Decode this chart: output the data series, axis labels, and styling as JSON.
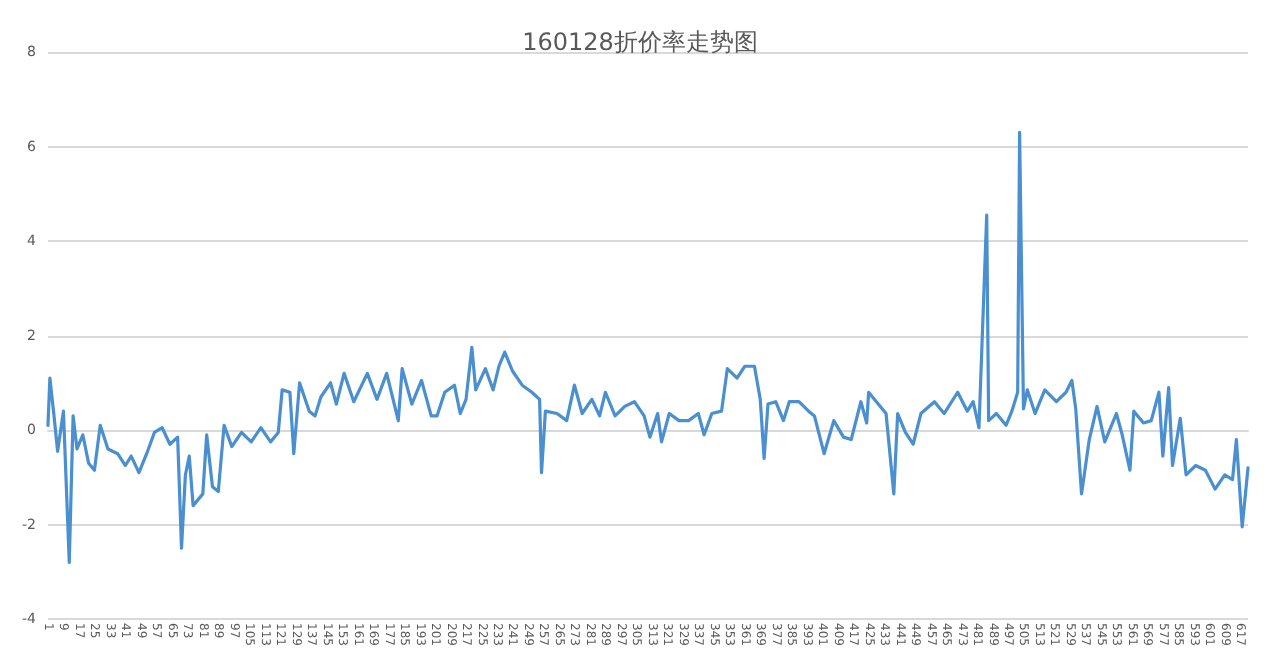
{
  "chart_data": {
    "type": "line",
    "title": "160128折价率走势图",
    "x": [
      1,
      2,
      4,
      6,
      9,
      12,
      14,
      16,
      19,
      22,
      25,
      28,
      32,
      37,
      41,
      44,
      48,
      52,
      56,
      60,
      64,
      68,
      70,
      72,
      74,
      76,
      81,
      83,
      86,
      89,
      92,
      96,
      101,
      106,
      111,
      116,
      120,
      122,
      126,
      128,
      131,
      136,
      139,
      142,
      147,
      150,
      154,
      159,
      166,
      171,
      176,
      182,
      184,
      189,
      194,
      199,
      202,
      206,
      211,
      214,
      217,
      220,
      222,
      227,
      231,
      234,
      237,
      241,
      246,
      251,
      255,
      256,
      258,
      264,
      269,
      273,
      277,
      282,
      286,
      289,
      294,
      299,
      304,
      309,
      312,
      316,
      318,
      322,
      327,
      332,
      337,
      340,
      344,
      349,
      352,
      357,
      361,
      366,
      369,
      371,
      373,
      377,
      381,
      384,
      389,
      394,
      397,
      402,
      407,
      412,
      416,
      421,
      424,
      425,
      429,
      434,
      438,
      440,
      444,
      448,
      452,
      459,
      464,
      471,
      476,
      479,
      482,
      486,
      487,
      491,
      496,
      499,
      502,
      503,
      505,
      507,
      511,
      516,
      522,
      527,
      530,
      532,
      535,
      539,
      543,
      547,
      553,
      556,
      560,
      562,
      567,
      571,
      575,
      577,
      580,
      582,
      586,
      589,
      594,
      599,
      604,
      609,
      613,
      615,
      618,
      621
    ],
    "series": [
      {
        "color": "#4a8fd0",
        "values": [
          0.1,
          1.1,
          0.35,
          -0.45,
          0.4,
          -2.8,
          0.3,
          -0.4,
          -0.1,
          -0.7,
          -0.85,
          0.1,
          -0.4,
          -0.5,
          -0.75,
          -0.55,
          -0.9,
          -0.5,
          -0.05,
          0.05,
          -0.3,
          -0.15,
          -2.5,
          -0.95,
          -0.55,
          -1.6,
          -1.35,
          -0.1,
          -1.2,
          -1.3,
          0.1,
          -0.35,
          -0.05,
          -0.25,
          0.05,
          -0.25,
          -0.05,
          0.85,
          0.8,
          -0.5,
          1.0,
          0.4,
          0.3,
          0.7,
          1.0,
          0.55,
          1.2,
          0.6,
          1.2,
          0.65,
          1.2,
          0.2,
          1.3,
          0.55,
          1.05,
          0.3,
          0.3,
          0.8,
          0.95,
          0.35,
          0.65,
          1.75,
          0.85,
          1.3,
          0.85,
          1.35,
          1.65,
          1.25,
          0.95,
          0.8,
          0.65,
          -0.9,
          0.4,
          0.35,
          0.2,
          0.95,
          0.35,
          0.65,
          0.3,
          0.8,
          0.3,
          0.5,
          0.6,
          0.3,
          -0.15,
          0.35,
          -0.25,
          0.35,
          0.2,
          0.2,
          0.35,
          -0.1,
          0.35,
          0.4,
          1.3,
          1.1,
          1.35,
          1.35,
          0.65,
          -0.6,
          0.55,
          0.6,
          0.2,
          0.6,
          0.6,
          0.4,
          0.3,
          -0.5,
          0.2,
          -0.15,
          -0.2,
          0.6,
          0.15,
          0.8,
          0.6,
          0.35,
          -1.35,
          0.35,
          -0.05,
          -0.3,
          0.35,
          0.6,
          0.35,
          0.8,
          0.4,
          0.6,
          0.05,
          4.55,
          0.2,
          0.35,
          0.1,
          0.4,
          0.8,
          6.3,
          0.45,
          0.85,
          0.35,
          0.85,
          0.6,
          0.8,
          1.05,
          0.45,
          -1.35,
          -0.2,
          0.5,
          -0.25,
          0.35,
          -0.1,
          -0.85,
          0.4,
          0.15,
          0.2,
          0.8,
          -0.55,
          0.9,
          -0.75,
          0.25,
          -0.95,
          -0.75,
          -0.85,
          -1.25,
          -0.95,
          -1.05,
          -0.2,
          -2.05,
          -0.8
        ]
      }
    ],
    "xlim": [
      1,
      621
    ],
    "xticks": [
      1,
      9,
      17,
      25,
      33,
      41,
      49,
      57,
      65,
      73,
      81,
      89,
      97,
      105,
      113,
      121,
      129,
      137,
      145,
      153,
      161,
      169,
      177,
      185,
      193,
      201,
      209,
      217,
      225,
      233,
      241,
      249,
      257,
      265,
      273,
      281,
      289,
      297,
      305,
      313,
      321,
      329,
      337,
      345,
      353,
      361,
      369,
      377,
      385,
      393,
      401,
      409,
      417,
      425,
      433,
      441,
      449,
      457,
      465,
      473,
      481,
      489,
      497,
      505,
      513,
      521,
      529,
      537,
      545,
      553,
      561,
      569,
      577,
      585,
      593,
      601,
      609,
      617
    ],
    "ylim": [
      -4,
      8
    ],
    "yticks": [
      -4,
      -2,
      0,
      2,
      4,
      6,
      8
    ],
    "grid": "y",
    "marker": "none",
    "line_style": "solid"
  }
}
